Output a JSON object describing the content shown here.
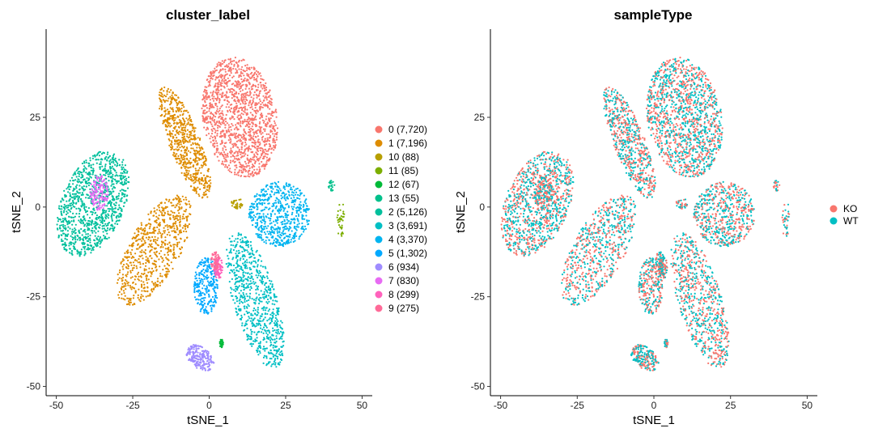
{
  "chart_data": [
    {
      "type": "scatter",
      "title": "cluster_label",
      "xlabel": "tSNE_1",
      "ylabel": "tSNE_2",
      "xlim": [
        -52,
        52
      ],
      "ylim": [
        -51,
        48
      ],
      "xticks": [
        -50,
        -25,
        0,
        25,
        50
      ],
      "xtick_labels": [
        "-50",
        "-25",
        "0",
        "25",
        "50"
      ],
      "yticks": [
        -50,
        -25,
        0,
        25
      ],
      "ytick_labels": [
        "-50",
        "-25",
        "0",
        "25"
      ],
      "legend_position": "right",
      "series": [
        {
          "name": "0 (7,720)",
          "color": "#F8766D",
          "count": 7720
        },
        {
          "name": "1 (7,196)",
          "color": "#DE8C00",
          "count": 7196
        },
        {
          "name": "10 (88)",
          "color": "#B79F00",
          "count": 88
        },
        {
          "name": "11 (85)",
          "color": "#7CAE00",
          "count": 85
        },
        {
          "name": "12 (67)",
          "color": "#00BA38",
          "count": 67
        },
        {
          "name": "13 (55)",
          "color": "#00C08B",
          "count": 55
        },
        {
          "name": "2 (5,126)",
          "color": "#00BF9C",
          "count": 5126
        },
        {
          "name": "3 (3,691)",
          "color": "#00BFC4",
          "count": 3691
        },
        {
          "name": "4 (3,370)",
          "color": "#00B4F0",
          "count": 3370
        },
        {
          "name": "5 (1,302)",
          "color": "#00A9FF",
          "count": 1302
        },
        {
          "name": "6 (934)",
          "color": "#9F8CFF",
          "count": 934
        },
        {
          "name": "7 (830)",
          "color": "#E76BF3",
          "count": 830
        },
        {
          "name": "8 (299)",
          "color": "#FF62BC",
          "count": 299
        },
        {
          "name": "9 (275)",
          "color": "#FF6A98",
          "count": 275
        }
      ],
      "regions": [
        {
          "series": 0,
          "cx": 10,
          "cy": 25,
          "rx": 12,
          "ry": 17,
          "rot": 15,
          "n": 1400
        },
        {
          "series": 1,
          "cx": -18,
          "cy": -12,
          "rx": 8,
          "ry": 18,
          "rot": -35,
          "n": 700
        },
        {
          "series": 1,
          "cx": -8,
          "cy": 18,
          "rx": 5,
          "ry": 17,
          "rot": 25,
          "n": 650
        },
        {
          "series": 6,
          "cx": -38,
          "cy": 1,
          "rx": 10,
          "ry": 16,
          "rot": -30,
          "n": 1050
        },
        {
          "series": 7,
          "cx": 15,
          "cy": -26,
          "rx": 7,
          "ry": 20,
          "rot": 20,
          "n": 750
        },
        {
          "series": 8,
          "cx": 23,
          "cy": -2,
          "rx": 10,
          "ry": 9,
          "rot": 0,
          "n": 600
        },
        {
          "series": 9,
          "cx": -1,
          "cy": -22,
          "rx": 4,
          "ry": 8,
          "rot": 0,
          "n": 270
        },
        {
          "series": 10,
          "cx": -3,
          "cy": -42,
          "rx": 3,
          "ry": 5,
          "rot": 60,
          "n": 220
        },
        {
          "series": 11,
          "cx": -36,
          "cy": 4,
          "rx": 3,
          "ry": 5,
          "rot": 0,
          "n": 140
        },
        {
          "series": 12,
          "cx": 3,
          "cy": -17,
          "rx": 1.5,
          "ry": 3,
          "rot": 0,
          "n": 80
        },
        {
          "series": 13,
          "cx": 2,
          "cy": -15,
          "rx": 1.5,
          "ry": 2.5,
          "rot": 0,
          "n": 60
        },
        {
          "series": 2,
          "cx": 9,
          "cy": 1,
          "rx": 2,
          "ry": 1.5,
          "rot": 0,
          "n": 35
        },
        {
          "series": 3,
          "cx": 43,
          "cy": -3,
          "rx": 1.2,
          "ry": 6,
          "rot": 0,
          "n": 35
        },
        {
          "series": 4,
          "cx": 4,
          "cy": -38,
          "rx": 0.6,
          "ry": 1.2,
          "rot": 0,
          "n": 25
        },
        {
          "series": 5,
          "cx": 40,
          "cy": 6,
          "rx": 1,
          "ry": 1.5,
          "rot": 0,
          "n": 20
        }
      ]
    },
    {
      "type": "scatter",
      "title": "sampleType",
      "xlabel": "tSNE_1",
      "ylabel": "tSNE_2",
      "xlim": [
        -52,
        52
      ],
      "ylim": [
        -51,
        48
      ],
      "xticks": [
        -50,
        -25,
        0,
        25,
        50
      ],
      "xtick_labels": [
        "-50",
        "-25",
        "0",
        "25",
        "50"
      ],
      "yticks": [
        -50,
        -25,
        0,
        25
      ],
      "ytick_labels": [
        "-50",
        "-25",
        "0",
        "25"
      ],
      "legend_position": "right",
      "series": [
        {
          "name": "KO",
          "color": "#F8766D"
        },
        {
          "name": "WT",
          "color": "#00BFC4"
        }
      ]
    }
  ]
}
